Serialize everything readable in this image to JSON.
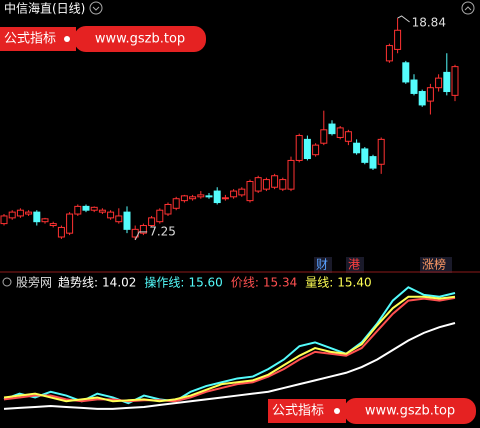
{
  "header": {
    "title": "中信海直(日线)"
  },
  "promo": {
    "badge": "公式指标",
    "url": "www.gszb.top"
  },
  "chart_data": [
    {
      "type": "candlestick",
      "ylim": [
        6.46,
        19.52
      ],
      "up_color": "#ff3232",
      "down_color": "#54fcfc",
      "open": [
        8.1,
        8.4,
        8.5,
        8.6,
        8.7,
        8.2,
        8.0,
        7.4,
        7.6,
        8.6,
        9.0,
        8.8,
        8.7,
        8.4,
        8.2,
        8.7,
        7.4,
        7.6,
        8.0,
        8.2,
        8.6,
        8.9,
        9.3,
        9.4,
        9.5,
        9.55,
        9.8,
        9.4,
        9.5,
        9.6,
        9.3,
        9.8,
        9.9,
        10.0,
        9.9,
        9.9,
        11.4,
        12.5,
        11.7,
        12.3,
        13.3,
        12.6,
        12.4,
        12.3,
        12.0,
        11.6,
        11.2,
        16.6,
        17.2,
        16.5,
        15.6,
        15.0,
        14.5,
        15.2,
        16.0,
        14.8
      ],
      "high": [
        8.6,
        8.8,
        8.9,
        8.8,
        8.8,
        8.4,
        8.2,
        8.0,
        8.7,
        9.1,
        9.1,
        9.0,
        8.9,
        8.8,
        8.9,
        9.0,
        8.0,
        8.1,
        8.5,
        8.9,
        9.2,
        9.5,
        9.6,
        9.6,
        9.8,
        9.7,
        10.0,
        9.6,
        9.9,
        10.0,
        10.4,
        10.6,
        10.5,
        10.7,
        10.5,
        11.6,
        12.8,
        12.7,
        12.3,
        14.0,
        13.5,
        13.2,
        13.0,
        12.5,
        12.1,
        11.7,
        12.6,
        17.5,
        18.84,
        16.6,
        15.9,
        15.1,
        15.4,
        15.9,
        17.0,
        16.4
      ],
      "low": [
        8.0,
        8.3,
        8.4,
        8.5,
        8.0,
        8.1,
        7.9,
        7.3,
        7.5,
        8.5,
        8.7,
        8.7,
        8.6,
        8.3,
        8.1,
        7.6,
        7.25,
        7.5,
        7.9,
        8.1,
        8.5,
        8.8,
        9.2,
        9.3,
        9.4,
        9.4,
        9.1,
        9.3,
        9.4,
        9.5,
        9.2,
        9.7,
        9.8,
        9.9,
        9.8,
        9.8,
        11.3,
        11.4,
        11.6,
        12.2,
        12.7,
        12.5,
        12.2,
        11.7,
        11.2,
        10.9,
        10.7,
        16.5,
        17.0,
        15.4,
        14.8,
        14.2,
        13.8,
        15.0,
        14.8,
        14.5
      ],
      "close": [
        8.5,
        8.7,
        8.8,
        8.7,
        8.2,
        8.35,
        8.1,
        7.9,
        8.6,
        9.0,
        8.8,
        8.95,
        8.8,
        8.7,
        8.5,
        7.8,
        7.8,
        8.0,
        8.4,
        8.8,
        9.1,
        9.4,
        9.55,
        9.5,
        9.6,
        9.5,
        9.2,
        9.45,
        9.8,
        9.9,
        10.3,
        10.5,
        10.4,
        10.6,
        10.4,
        11.4,
        12.7,
        11.5,
        12.2,
        13.0,
        12.8,
        13.1,
        12.9,
        11.8,
        11.3,
        11.0,
        12.5,
        17.4,
        18.2,
        15.5,
        14.9,
        14.3,
        15.2,
        15.7,
        15.0,
        16.3
      ],
      "annotations": [
        "财",
        "港",
        "涨榜"
      ]
    },
    {
      "type": "line",
      "title": "股旁网",
      "ylim": [
        8.65,
        16.02
      ],
      "series": [
        {
          "name": "趋势线:",
          "color": "#ffffff",
          "legend_value": "14.02",
          "values": [
            9.5,
            9.55,
            9.6,
            9.65,
            9.6,
            9.55,
            9.5,
            9.5,
            9.55,
            9.6,
            9.7,
            9.8,
            9.9,
            10.0,
            10.1,
            10.2,
            10.3,
            10.4,
            10.6,
            10.8,
            11.0,
            11.2,
            11.4,
            11.7,
            12.1,
            12.6,
            13.1,
            13.5,
            13.8,
            14.02
          ]
        },
        {
          "name": "操作线:",
          "color": "#54fcfc",
          "legend_value": "15.60",
          "values": [
            10.0,
            10.3,
            10.1,
            10.4,
            10.2,
            9.9,
            10.3,
            10.1,
            9.8,
            10.2,
            10.0,
            9.9,
            10.4,
            10.7,
            10.9,
            11.1,
            11.2,
            11.6,
            12.1,
            12.8,
            13.0,
            12.7,
            12.4,
            13.0,
            14.0,
            15.2,
            15.9,
            15.5,
            15.4,
            15.6
          ]
        },
        {
          "name": "价线:",
          "color": "#ff5050",
          "legend_value": "15.34",
          "values": [
            10.0,
            10.1,
            10.2,
            10.2,
            10.0,
            9.9,
            10.0,
            10.0,
            9.9,
            9.95,
            9.95,
            9.9,
            10.1,
            10.4,
            10.6,
            10.8,
            10.9,
            11.2,
            11.6,
            12.1,
            12.5,
            12.4,
            12.3,
            12.7,
            13.6,
            14.5,
            15.2,
            15.3,
            15.2,
            15.34
          ]
        },
        {
          "name": "量线:",
          "color": "#ffff54",
          "legend_value": "15.40",
          "values": [
            10.1,
            10.2,
            10.3,
            10.1,
            9.9,
            10.0,
            10.1,
            9.9,
            9.95,
            10.0,
            9.9,
            10.0,
            10.2,
            10.5,
            10.8,
            10.9,
            11.0,
            11.3,
            11.8,
            12.3,
            12.7,
            12.5,
            12.4,
            12.9,
            13.9,
            14.8,
            15.4,
            15.4,
            15.3,
            15.4
          ]
        }
      ]
    }
  ]
}
